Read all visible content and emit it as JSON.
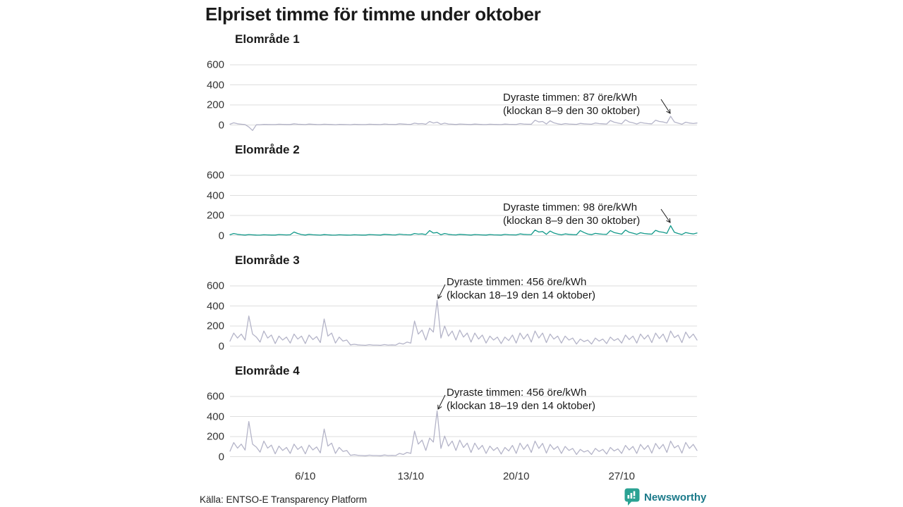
{
  "title": "Elpriset timme för timme under oktober",
  "footer": {
    "source": "Källa: ENTSO-E Transparency Platform",
    "brand": "Newsworthy"
  },
  "colors": {
    "line": "#b4b4c8",
    "highlight": "#12998a",
    "grid": "#dedede",
    "text": "#1a1a1a",
    "brand_icon": "#2aa293",
    "brand_text": "#1b7a8a"
  },
  "x_axis": {
    "ticks": [
      {
        "label": "6/10",
        "day": 6
      },
      {
        "label": "13/10",
        "day": 13
      },
      {
        "label": "20/10",
        "day": 20
      },
      {
        "label": "27/10",
        "day": 27
      }
    ]
  },
  "chart_data": [
    {
      "type": "line",
      "title": "Elområde 1",
      "unit": "öre/kWh",
      "yticks": [
        0,
        200,
        400,
        600
      ],
      "ylim": [
        -100,
        650
      ],
      "x_range_days": [
        1,
        31
      ],
      "step_hours": 6,
      "grid": true,
      "highlight": false,
      "annotation": {
        "line1": "Dyraste timmen: 87 öre/kWh",
        "line2": "(klockan 8–9 den 30 oktober)",
        "max_value": 87,
        "max_time": "klockan 8–9 den 30 oktober"
      },
      "values": [
        8,
        22,
        12,
        8,
        4,
        -20,
        -55,
        2,
        3,
        6,
        5,
        4,
        4,
        8,
        6,
        5,
        5,
        12,
        8,
        6,
        4,
        9,
        7,
        5,
        4,
        8,
        6,
        5,
        3,
        6,
        5,
        4,
        3,
        7,
        5,
        4,
        4,
        8,
        6,
        5,
        4,
        10,
        7,
        6,
        5,
        12,
        9,
        7,
        6,
        18,
        12,
        14,
        8,
        35,
        20,
        28,
        8,
        18,
        10,
        8,
        5,
        10,
        8,
        6,
        5,
        9,
        7,
        5,
        4,
        8,
        6,
        5,
        4,
        9,
        7,
        6,
        5,
        14,
        10,
        8,
        8,
        48,
        30,
        35,
        10,
        42,
        22,
        12,
        6,
        14,
        10,
        8,
        6,
        16,
        12,
        10,
        8,
        20,
        14,
        12,
        10,
        45,
        28,
        20,
        12,
        52,
        30,
        22,
        10,
        25,
        18,
        14,
        12,
        48,
        35,
        30,
        20,
        87,
        30,
        18,
        8,
        28,
        20,
        15,
        20
      ]
    },
    {
      "type": "line",
      "title": "Elområde 2",
      "unit": "öre/kWh",
      "yticks": [
        0,
        200,
        400,
        600
      ],
      "ylim": [
        -100,
        650
      ],
      "x_range_days": [
        1,
        31
      ],
      "step_hours": 6,
      "grid": true,
      "highlight": true,
      "annotation": {
        "line1": "Dyraste timmen: 98 öre/kWh",
        "line2": "(klockan 8–9 den 30 oktober)",
        "max_value": 98,
        "max_time": "klockan 8–9 den 30 oktober"
      },
      "values": [
        8,
        20,
        12,
        8,
        5,
        10,
        7,
        5,
        4,
        8,
        6,
        5,
        5,
        10,
        8,
        6,
        8,
        35,
        20,
        10,
        5,
        12,
        8,
        6,
        4,
        9,
        7,
        5,
        4,
        8,
        6,
        5,
        4,
        8,
        6,
        5,
        5,
        10,
        8,
        6,
        5,
        12,
        9,
        7,
        6,
        14,
        10,
        8,
        7,
        20,
        14,
        16,
        10,
        50,
        25,
        30,
        8,
        20,
        12,
        8,
        6,
        12,
        9,
        7,
        5,
        10,
        8,
        6,
        5,
        10,
        7,
        6,
        5,
        11,
        8,
        7,
        6,
        16,
        12,
        10,
        10,
        55,
        35,
        40,
        12,
        45,
        25,
        14,
        7,
        16,
        12,
        9,
        8,
        50,
        30,
        15,
        9,
        22,
        16,
        13,
        12,
        50,
        30,
        22,
        14,
        55,
        32,
        24,
        12,
        28,
        20,
        16,
        14,
        52,
        38,
        32,
        22,
        98,
        32,
        20,
        10,
        30,
        22,
        16,
        25
      ]
    },
    {
      "type": "line",
      "title": "Elområde 3",
      "unit": "öre/kWh",
      "yticks": [
        0,
        200,
        400,
        600
      ],
      "ylim": [
        -100,
        650
      ],
      "x_range_days": [
        1,
        31
      ],
      "step_hours": 6,
      "grid": true,
      "highlight": false,
      "annotation": {
        "line1": "Dyraste timmen: 456 öre/kWh",
        "line2": "(klockan 18–19 den 14 oktober)",
        "max_value": 456,
        "max_time": "klockan 18–19 den 14 oktober"
      },
      "values": [
        50,
        130,
        80,
        120,
        60,
        300,
        120,
        90,
        40,
        150,
        80,
        110,
        25,
        100,
        60,
        90,
        30,
        120,
        70,
        100,
        25,
        110,
        65,
        95,
        35,
        270,
        100,
        130,
        30,
        90,
        50,
        60,
        12,
        18,
        12,
        10,
        8,
        14,
        10,
        10,
        8,
        15,
        10,
        12,
        10,
        30,
        20,
        40,
        30,
        250,
        120,
        160,
        60,
        180,
        140,
        456,
        80,
        200,
        100,
        150,
        60,
        160,
        90,
        130,
        40,
        130,
        70,
        110,
        30,
        100,
        60,
        90,
        25,
        90,
        55,
        110,
        30,
        130,
        70,
        120,
        40,
        150,
        80,
        130,
        35,
        120,
        70,
        100,
        30,
        100,
        60,
        80,
        20,
        70,
        45,
        60,
        20,
        80,
        50,
        70,
        25,
        90,
        55,
        75,
        30,
        110,
        65,
        100,
        30,
        120,
        70,
        110,
        35,
        130,
        75,
        120,
        40,
        150,
        85,
        110,
        35,
        140,
        80,
        120,
        60
      ]
    },
    {
      "type": "line",
      "title": "Elområde 4",
      "unit": "öre/kWh",
      "yticks": [
        0,
        200,
        400,
        600
      ],
      "ylim": [
        -100,
        650
      ],
      "x_range_days": [
        1,
        31
      ],
      "step_hours": 6,
      "grid": true,
      "highlight": false,
      "annotation": {
        "line1": "Dyraste timmen: 456 öre/kWh",
        "line2": "(klockan 18–19 den 14 oktober)",
        "max_value": 456,
        "max_time": "klockan 18–19 den 14 oktober"
      },
      "values": [
        55,
        140,
        85,
        125,
        65,
        350,
        125,
        95,
        45,
        155,
        85,
        115,
        28,
        105,
        62,
        92,
        32,
        125,
        72,
        102,
        28,
        115,
        67,
        97,
        38,
        275,
        105,
        135,
        32,
        92,
        52,
        62,
        13,
        19,
        13,
        11,
        9,
        15,
        11,
        11,
        9,
        16,
        11,
        13,
        11,
        32,
        22,
        42,
        32,
        255,
        125,
        165,
        62,
        185,
        145,
        456,
        82,
        205,
        105,
        155,
        62,
        165,
        92,
        135,
        42,
        135,
        72,
        112,
        32,
        105,
        62,
        92,
        26,
        92,
        57,
        112,
        32,
        135,
        72,
        122,
        42,
        155,
        82,
        132,
        36,
        122,
        72,
        102,
        32,
        102,
        62,
        82,
        22,
        72,
        46,
        62,
        22,
        82,
        52,
        72,
        26,
        92,
        57,
        77,
        32,
        112,
        67,
        102,
        32,
        122,
        72,
        112,
        36,
        132,
        77,
        122,
        42,
        155,
        87,
        112,
        36,
        142,
        82,
        122,
        62
      ]
    }
  ]
}
